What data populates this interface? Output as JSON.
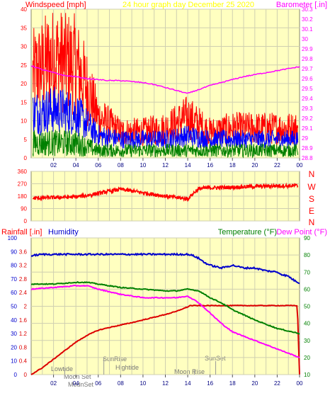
{
  "header_top": {
    "left": "Windspeed [mph]",
    "center": "24 hour graph day   December 25 2020",
    "right": "Barometer [.in]"
  },
  "header_bottom": {
    "rainfall": "Rainfall [.in]",
    "humidity": "Humidity",
    "temperature": "Temperature (°F)",
    "dewpoint": "Dew Point (°F)"
  },
  "colors": {
    "background": "#ffffc0",
    "wind": "#ff0000",
    "gust": "#0000ff",
    "avg": "#008000",
    "barometer": "#ff00ff",
    "direction": "#ff0000",
    "rain": "#dd0000",
    "humidity": "#0000cc",
    "temperature": "#008000",
    "dewpoint": "#ff00ff",
    "left_axis": "#ff0000",
    "right_axis": "#ff00ff",
    "temp_axis": "#008000"
  },
  "x_ticks": [
    "02",
    "04",
    "06",
    "08",
    "10",
    "12",
    "14",
    "16",
    "18",
    "20",
    "22",
    "00"
  ],
  "events": {
    "lowtide": "Lowtide",
    "moonset": "Moon Set",
    "modset": "ModnSet",
    "sunrise": "SunRise",
    "hightide": "Hightide",
    "moonrise": "Moon Rise",
    "sunset": "SunSet"
  },
  "compass": [
    "N",
    "W",
    "S",
    "E",
    "N"
  ],
  "chart_data": [
    {
      "type": "line",
      "name": "wind",
      "x_range_hours": [
        0,
        24
      ],
      "ylim_left": [
        0,
        40
      ],
      "ylim_right": [
        28.8,
        30.3
      ],
      "left_ticks": [
        "0",
        "5",
        "10",
        "15",
        "20",
        "25",
        "30",
        "35",
        "40"
      ],
      "right_ticks": [
        "28.8",
        "28.9",
        "29",
        "29.1",
        "29.2",
        "29.3",
        "29.4",
        "29.5",
        "29.6",
        "29.7",
        "29.8",
        "29.9",
        "30",
        "30.1",
        "30.2",
        "30.3"
      ],
      "series": [
        {
          "x": [
            0,
            2,
            4,
            5,
            6,
            8,
            10,
            12,
            14,
            16,
            18,
            20,
            22,
            24
          ],
          "y": [
            22,
            27,
            25,
            19,
            11,
            7,
            7,
            8,
            11,
            7,
            8,
            8,
            8,
            8
          ]
        },
        {
          "x": [
            0,
            2,
            4,
            5,
            6,
            8,
            10,
            12,
            14,
            16,
            18,
            20,
            22,
            24
          ],
          "y": [
            12,
            13,
            12,
            9,
            6,
            5,
            5,
            5,
            6,
            5,
            5,
            5,
            5,
            5
          ]
        },
        {
          "x": [
            0,
            2,
            4,
            5,
            6,
            8,
            10,
            12,
            14,
            16,
            18,
            20,
            22,
            24
          ],
          "y": [
            4,
            4,
            4,
            3,
            2,
            2,
            2,
            2,
            2,
            2,
            2,
            2,
            2,
            2
          ]
        },
        {
          "x": [
            0,
            1,
            2,
            3,
            4,
            5,
            6,
            7,
            8,
            9,
            10,
            11,
            12,
            13,
            14,
            15,
            16,
            17,
            18,
            19,
            20,
            21,
            22,
            23,
            24
          ],
          "y": [
            29.73,
            29.69,
            29.66,
            29.63,
            29.62,
            29.6,
            29.59,
            29.58,
            29.58,
            29.57,
            29.56,
            29.54,
            29.51,
            29.48,
            29.45,
            29.49,
            29.53,
            29.56,
            29.59,
            29.62,
            29.64,
            29.66,
            29.68,
            29.7,
            29.72
          ]
        }
      ]
    },
    {
      "type": "line",
      "name": "wind direction",
      "x_range_hours": [
        0,
        24
      ],
      "ylim": [
        0,
        360
      ],
      "y_ticks": [
        "0",
        "90",
        "180",
        "270",
        "360"
      ],
      "series": [
        {
          "x": [
            0,
            2,
            4,
            5,
            6,
            8,
            10,
            12,
            13,
            14,
            14.5,
            15,
            16,
            18,
            20,
            22,
            24
          ],
          "y": [
            165,
            170,
            175,
            185,
            200,
            230,
            205,
            180,
            170,
            160,
            200,
            235,
            240,
            245,
            250,
            255,
            255
          ]
        }
      ]
    },
    {
      "type": "line",
      "name": "rain humidity temperature",
      "x_range_hours": [
        0,
        24
      ],
      "ylim_left_rain": [
        0,
        4
      ],
      "ylim_left_humidity": [
        0,
        100
      ],
      "ylim_right_temp": [
        10,
        90
      ],
      "rain_ticks": [
        "0",
        "0.4",
        "0.8",
        "1.2",
        "1.6",
        "2",
        "2.4",
        "2.8",
        "3.2",
        "3.6"
      ],
      "humidity_ticks": [
        "0",
        "10",
        "20",
        "30",
        "40",
        "50",
        "60",
        "70",
        "80",
        "90",
        "100"
      ],
      "temp_ticks": [
        "10",
        "20",
        "30",
        "40",
        "50",
        "60",
        "70",
        "80",
        "90"
      ],
      "series": [
        {
          "x": [
            0,
            1,
            2,
            3,
            4,
            5,
            6,
            7,
            8,
            9,
            10,
            11,
            12,
            13,
            13.5,
            14,
            14.2,
            15,
            16,
            18,
            20,
            22,
            23.8,
            24
          ],
          "y": [
            0,
            0.2,
            0.45,
            0.7,
            0.95,
            1.15,
            1.3,
            1.38,
            1.45,
            1.52,
            1.6,
            1.68,
            1.76,
            1.85,
            1.92,
            1.98,
            2.02,
            2.02,
            2.02,
            2.02,
            2.02,
            2.02,
            2.02,
            0
          ]
        },
        {
          "x": [
            0,
            1,
            2,
            3,
            4,
            5,
            6,
            7,
            8,
            9,
            10,
            11,
            12,
            13,
            14,
            14.5,
            15,
            15.5,
            16,
            17,
            18,
            19,
            20,
            21,
            22,
            22.5,
            23,
            23.5,
            24
          ],
          "y": [
            87,
            88,
            88,
            88,
            88,
            88,
            88,
            88,
            88,
            88,
            88,
            88,
            88,
            88,
            88,
            87,
            85,
            82,
            80,
            78,
            80,
            78,
            78,
            76,
            75,
            73,
            72,
            69,
            67
          ]
        },
        {
          "x": [
            0,
            2,
            4,
            5,
            6,
            8,
            10,
            12,
            13,
            14,
            15,
            16,
            17,
            18,
            20,
            22,
            24
          ],
          "y": [
            63,
            63,
            64,
            64,
            63,
            61,
            60,
            59,
            59,
            60,
            59,
            55,
            52,
            48,
            42,
            37,
            34
          ]
        },
        {
          "x": [
            0,
            2,
            4,
            5,
            6,
            8,
            10,
            12,
            13,
            14,
            15,
            16,
            17,
            18,
            20,
            22,
            24
          ],
          "y": [
            60,
            61,
            62,
            62,
            60,
            57,
            55,
            55,
            55,
            56,
            52,
            46,
            40,
            35,
            30,
            25,
            20
          ]
        }
      ]
    }
  ]
}
